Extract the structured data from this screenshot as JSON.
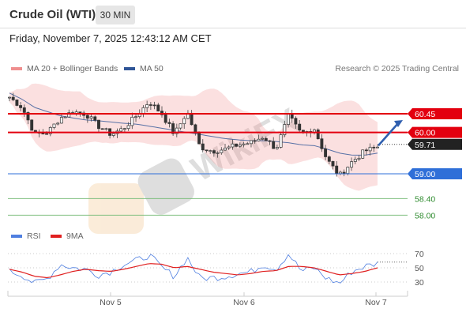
{
  "header": {
    "title": "Crude Oil (WTI)",
    "timeframe": "30 MIN",
    "datetime": "Friday, November 7, 2025 12:43:12 AM CET"
  },
  "legend": {
    "items": [
      {
        "label": "MA 20 + Bollinger Bands",
        "color": "#ef8f8f"
      },
      {
        "label": "MA 50",
        "color": "#2f5597"
      }
    ],
    "credit": "Research © 2025 Trading Central"
  },
  "rsi_legend": {
    "items": [
      {
        "label": "RSI",
        "color": "#4f7fe0"
      },
      {
        "label": "9MA",
        "color": "#e02020"
      }
    ]
  },
  "watermark": "WikiFX",
  "chart_data": [
    {
      "type": "candlestick",
      "title": "Crude Oil (WTI)",
      "y_range": [
        57.7,
        61.3
      ],
      "price_levels": [
        {
          "value": 60.45,
          "label": "60.45",
          "kind": "resistance",
          "color": "#e3000f"
        },
        {
          "value": 60.0,
          "label": "60.00",
          "kind": "resistance",
          "color": "#e3000f"
        },
        {
          "value": 59.71,
          "label": "59.71",
          "kind": "last-price",
          "color": "#222222"
        },
        {
          "value": 59.0,
          "label": "59.00",
          "kind": "pivot",
          "color": "#2f6fd8"
        },
        {
          "value": 58.4,
          "label": "58.40",
          "kind": "target",
          "color": "#2e8b2e"
        },
        {
          "value": 58.0,
          "label": "58.00",
          "kind": "target",
          "color": "#2e8b2e"
        }
      ],
      "x_ticks": [
        "Nov 5",
        "Nov 6",
        "Nov 7"
      ],
      "close_path": [
        60.85,
        60.6,
        59.95,
        60.0,
        60.35,
        60.5,
        60.45,
        60.15,
        59.95,
        60.1,
        60.4,
        60.75,
        60.45,
        59.95,
        60.5,
        59.65,
        59.55,
        59.6,
        59.7,
        59.75,
        59.9,
        59.6,
        60.4,
        59.95,
        60.1,
        59.35,
        58.95,
        59.3,
        59.55,
        59.65
      ],
      "ma50_path": [
        60.95,
        60.8,
        60.6,
        60.5,
        60.4,
        60.35,
        60.3,
        60.28,
        60.25,
        60.22,
        60.2,
        60.15,
        60.1,
        60.05,
        60.0,
        59.95,
        59.9,
        59.85,
        59.82,
        59.8,
        59.8,
        59.78,
        59.75,
        59.7,
        59.68,
        59.6,
        59.5,
        59.45,
        59.45,
        59.5
      ],
      "forecast_arrow": {
        "from": 59.7,
        "to": 60.45
      }
    },
    {
      "type": "line",
      "title": "RSI",
      "y_ticks": [
        70,
        50,
        30
      ],
      "series": [
        {
          "name": "RSI",
          "values": [
            45,
            40,
            28,
            35,
            55,
            50,
            48,
            40,
            45,
            55,
            60,
            68,
            50,
            38,
            65,
            35,
            36,
            38,
            42,
            44,
            55,
            48,
            70,
            45,
            50,
            35,
            28,
            45,
            52,
            56
          ]
        },
        {
          "name": "9MA",
          "values": [
            48,
            44,
            38,
            36,
            40,
            45,
            48,
            46,
            45,
            48,
            52,
            56,
            55,
            50,
            52,
            48,
            44,
            42,
            40,
            42,
            45,
            46,
            52,
            52,
            50,
            45,
            40,
            42,
            45,
            50
          ]
        }
      ]
    }
  ]
}
